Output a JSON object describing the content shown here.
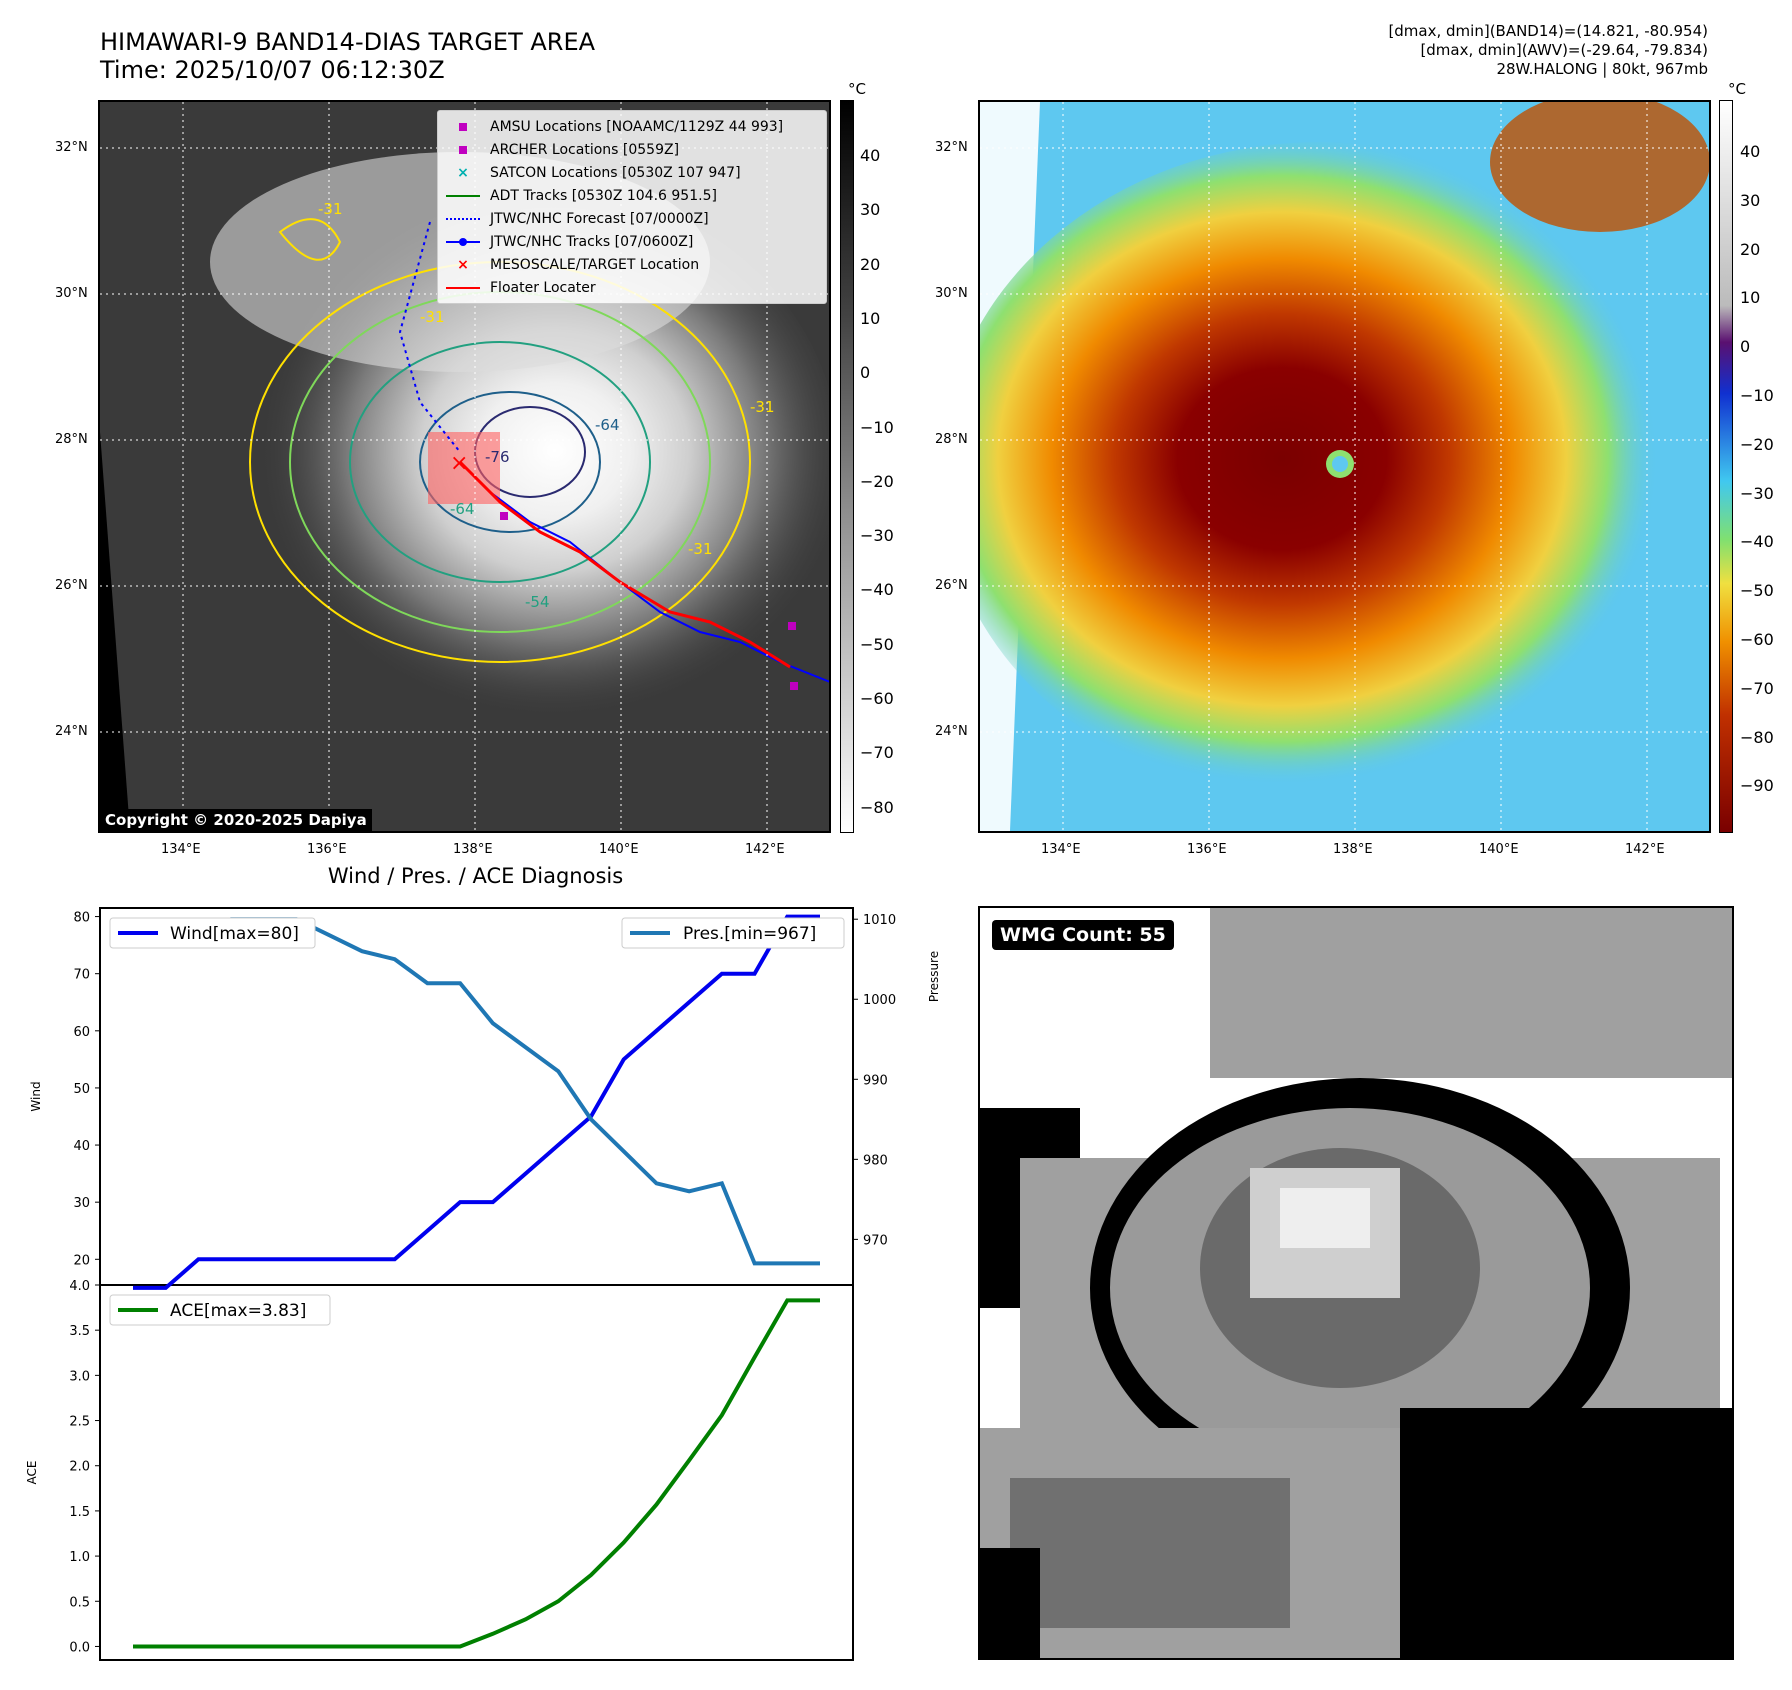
{
  "header": {
    "title_line1": "HIMAWARI-9 BAND14-DIAS TARGET AREA",
    "title_line2": "Time: 2025/10/07 06:12:30Z",
    "info_line1": "[dmax, dmin](BAND14)=(14.821, -80.954)",
    "info_line2": "[dmax, dmin](AWV)=(-29.64, -79.834)",
    "info_line3": "28W.HALONG | 80kt, 967mb"
  },
  "map": {
    "lat_labels": [
      "32°N",
      "30°N",
      "28°N",
      "26°N",
      "24°N"
    ],
    "lon_labels": [
      "134°E",
      "136°E",
      "138°E",
      "140°E",
      "142°E"
    ],
    "copyright": "Copyright © 2020-2025 Dapiya",
    "contour_labels": [
      "-64",
      "-76",
      "-64",
      "-54",
      "-31",
      "-31",
      "-31",
      "-31"
    ]
  },
  "legend": {
    "items": [
      {
        "label": "AMSU Locations [NOAAMC/1129Z 44 993]",
        "symbol": "square",
        "color": "#c000c0"
      },
      {
        "label": "ARCHER Locations [0559Z]",
        "symbol": "square",
        "color": "#c000c0"
      },
      {
        "label": "SATCON Locations [0530Z 107 947]",
        "symbol": "x",
        "color": "#00b0b0"
      },
      {
        "label": "ADT Tracks [0530Z 104.6 951.5]",
        "symbol": "line",
        "color": "#008000"
      },
      {
        "label": "JTWC/NHC Forecast [07/0000Z]",
        "symbol": "dotted",
        "color": "#0000ff"
      },
      {
        "label": "JTWC/NHC Tracks [07/0600Z]",
        "symbol": "linedot",
        "color": "#0000ff"
      },
      {
        "label": "MESOSCALE/TARGET Location",
        "symbol": "x",
        "color": "#ff0000"
      },
      {
        "label": "Floater Locater",
        "symbol": "line",
        "color": "#ff0000"
      }
    ]
  },
  "colorbar_gray": {
    "unit": "°C",
    "ticks": [
      "40",
      "30",
      "20",
      "10",
      "0",
      "−10",
      "−20",
      "−30",
      "−40",
      "−50",
      "−60",
      "−70",
      "−80"
    ]
  },
  "colorbar_color": {
    "unit": "°C",
    "ticks": [
      "40",
      "30",
      "20",
      "10",
      "0",
      "−10",
      "−20",
      "−30",
      "−40",
      "−50",
      "−60",
      "−70",
      "−80",
      "−90"
    ]
  },
  "chart_data": [
    {
      "type": "line",
      "title": "Wind / Pres. / ACE Diagnosis",
      "ylabel": "Wind",
      "ylabel_right": "Pressure",
      "ylim": [
        15.5,
        81.5
      ],
      "ylim_right": [
        964.3,
        1011.4
      ],
      "yticks": [
        20,
        30,
        40,
        50,
        60,
        70,
        80
      ],
      "yticks_right": [
        970,
        980,
        990,
        1000,
        1010
      ],
      "x": [
        0,
        1,
        2,
        3,
        4,
        5,
        6,
        7,
        8,
        9,
        10,
        11,
        12,
        13,
        14,
        15,
        16,
        17,
        18,
        19,
        20,
        21
      ],
      "series": [
        {
          "name": "Wind[max=80]",
          "axis": "left",
          "color": "#0000ee",
          "values": [
            15,
            15,
            20,
            20,
            20,
            20,
            20,
            20,
            20,
            25,
            30,
            30,
            35,
            40,
            45,
            55,
            60,
            65,
            70,
            70,
            80,
            80
          ]
        },
        {
          "name": "Pres.[min=967]",
          "axis": "right",
          "color": "#1f77b4",
          "values": [
            1009,
            1009,
            1009,
            1010,
            1010,
            1010,
            1008,
            1006,
            1005,
            1002,
            1002,
            997,
            994,
            991,
            985,
            981,
            977,
            976,
            977,
            967,
            967,
            967
          ]
        }
      ]
    },
    {
      "type": "line",
      "ylabel": "ACE",
      "ylim": [
        -0.15,
        4.0
      ],
      "yticks": [
        0.0,
        0.5,
        1.0,
        1.5,
        2.0,
        2.5,
        3.0,
        3.5,
        4.0
      ],
      "ytick_labels": [
        "0.0",
        "0.5",
        "1.0",
        "1.5",
        "2.0",
        "2.5",
        "3.0",
        "3.5",
        "4.0"
      ],
      "x": [
        0,
        1,
        2,
        3,
        4,
        5,
        6,
        7,
        8,
        9,
        10,
        11,
        12,
        13,
        14,
        15,
        16,
        17,
        18,
        19,
        20,
        21
      ],
      "series": [
        {
          "name": "ACE[max=3.83]",
          "color": "#008000",
          "values": [
            0,
            0,
            0,
            0,
            0,
            0,
            0,
            0,
            0,
            0,
            0,
            0.14,
            0.3,
            0.5,
            0.79,
            1.15,
            1.57,
            2.06,
            2.56,
            3.2,
            3.83,
            3.83
          ]
        }
      ]
    }
  ],
  "wmg": {
    "label": "WMG Count: 55"
  }
}
